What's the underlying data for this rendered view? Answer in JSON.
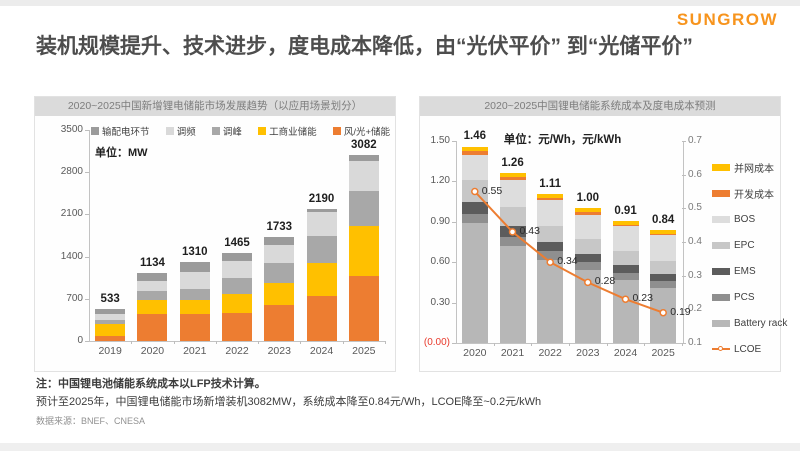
{
  "slide": {
    "logo": "SUNGROW",
    "title": "装机规模提升、技术进步，度电成本降低，由“光伏平价” 到“光储平价”",
    "notes": {
      "note1": "注：中国锂电池储能系统成本以LFP技术计算。",
      "note2": "预计至2025年，中国锂电储能市场新增装机3082MW，系统成本降至0.84元/Wh，LCOE降至~0.2元/kWh",
      "source": "数据来源：BNEF、CNESA"
    },
    "colors": {
      "brand_orange": "#F7941D",
      "accent_orange": "#ED7D31",
      "accent_yellow": "#FFC000",
      "negative_red": "#E8392B"
    }
  },
  "chart_data": [
    {
      "type": "bar",
      "stacked": true,
      "title": "2020~2025中国新增锂电储能市场发展趋势（以应用场景划分）",
      "unit_label": "单位：MW",
      "categories": [
        "2019",
        "2020",
        "2021",
        "2022",
        "2023",
        "2024",
        "2025"
      ],
      "totals": [
        533,
        1134,
        1310,
        1465,
        1733,
        2190,
        3082
      ],
      "series": [
        {
          "name": "风/光+储能",
          "color": "#ED7D31",
          "values": [
            90,
            450,
            445,
            470,
            600,
            740,
            1070
          ]
        },
        {
          "name": "工商业储能",
          "color": "#FFC000",
          "values": [
            200,
            236,
            238,
            315,
            355,
            555,
            830
          ]
        },
        {
          "name": "调峰",
          "color": "#A8A8A8",
          "values": [
            65,
            150,
            180,
            255,
            340,
            440,
            590
          ]
        },
        {
          "name": "调频",
          "color": "#D9D9D9",
          "values": [
            100,
            170,
            280,
            295,
            290,
            400,
            490
          ]
        },
        {
          "name": "输配电环节",
          "color": "#9B9B9B",
          "values": [
            78,
            128,
            167,
            130,
            148,
            55,
            102
          ]
        }
      ],
      "legend_order": [
        "输配电环节",
        "调频",
        "调峰",
        "工商业储能",
        "风/光+储能"
      ],
      "ylim": [
        0,
        3500
      ],
      "yticks": [
        0,
        700,
        1400,
        2100,
        2800,
        3500
      ],
      "legend_position": "top",
      "grid": false
    },
    {
      "type": "bar+line",
      "stacked": true,
      "title": "2020~2025中国锂电储能系统成本及度电成本预测",
      "unit_label": "单位：元/Wh，元/kWh",
      "categories": [
        "2020",
        "2021",
        "2022",
        "2023",
        "2024",
        "2025"
      ],
      "totals": [
        1.46,
        1.26,
        1.11,
        1.0,
        0.91,
        0.84
      ],
      "totals_display": [
        "1.46",
        "1.26",
        "1.11",
        "1.00",
        "0.91",
        "0.84"
      ],
      "series": [
        {
          "name": "Battery rack",
          "color": "#B7B7B7",
          "values": [
            0.89,
            0.72,
            0.62,
            0.54,
            0.47,
            0.41
          ]
        },
        {
          "name": "PCS",
          "color": "#8F8F8F",
          "values": [
            0.07,
            0.07,
            0.06,
            0.06,
            0.05,
            0.05
          ]
        },
        {
          "name": "EMS",
          "color": "#5C5C5C",
          "values": [
            0.09,
            0.08,
            0.07,
            0.06,
            0.06,
            0.05
          ]
        },
        {
          "name": "EPC",
          "color": "#C7C7C7",
          "values": [
            0.16,
            0.14,
            0.12,
            0.11,
            0.1,
            0.1
          ]
        },
        {
          "name": "BOS",
          "color": "#DDDDDD",
          "values": [
            0.19,
            0.2,
            0.19,
            0.18,
            0.19,
            0.19
          ]
        },
        {
          "name": "开发成本",
          "color": "#ED7D31",
          "values": [
            0.03,
            0.02,
            0.02,
            0.02,
            0.01,
            0.01
          ]
        },
        {
          "name": "并网成本",
          "color": "#FFC000",
          "values": [
            0.03,
            0.03,
            0.03,
            0.03,
            0.03,
            0.03
          ]
        }
      ],
      "line": {
        "name": "LCOE",
        "color": "#ED7D31",
        "axis": "right",
        "values": [
          0.55,
          0.43,
          0.34,
          0.28,
          0.23,
          0.19
        ],
        "labels": [
          "0.55",
          "0.43",
          "0.34",
          "0.28",
          "0.23",
          "0.19"
        ]
      },
      "left_axis": {
        "tick_values": [
          1.5,
          1.2,
          0.9,
          0.6,
          0.3,
          0
        ],
        "tick_labels": [
          "1.50",
          "1.20",
          "0.90",
          "0.60",
          "0.30",
          "(0.00)"
        ],
        "lim": [
          0,
          1.5
        ]
      },
      "right_axis": {
        "tick_values": [
          0.7,
          0.6,
          0.5,
          0.4,
          0.3,
          0.2,
          0.1
        ],
        "tick_labels": [
          "0.7",
          "0.6",
          "0.5",
          "0.4",
          "0.3",
          "0.2",
          "0.1"
        ],
        "lim": [
          0.1,
          0.7
        ]
      },
      "legend_order": [
        "并网成本",
        "开发成本",
        "BOS",
        "EPC",
        "EMS",
        "PCS",
        "Battery rack",
        "LCOE"
      ],
      "legend_position": "right",
      "grid": false
    }
  ]
}
